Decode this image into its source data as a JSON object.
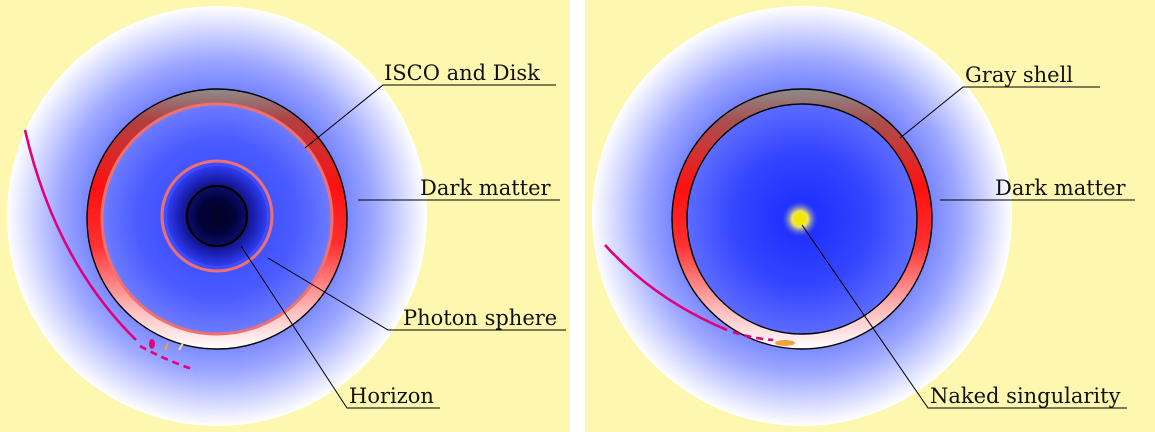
{
  "left_panel": {
    "labels": {
      "isco_disk": "ISCO and Disk",
      "dark_matter": "Dark matter",
      "photon_sphere": "Photon sphere",
      "horizon": "Horizon"
    }
  },
  "right_panel": {
    "labels": {
      "gray_shell": "Gray shell",
      "dark_matter": "Dark matter",
      "naked_singularity": "Naked singularity"
    }
  },
  "colors": {
    "background": "#fdf7b0",
    "halo_blue": "#3a4cff",
    "core_black": "#000020",
    "photon_ring": "#f07070",
    "disk_red": "#ff1a1a",
    "shell_gray": "#909090",
    "trajectory": "#e0007a",
    "singularity": "#f2e800"
  }
}
